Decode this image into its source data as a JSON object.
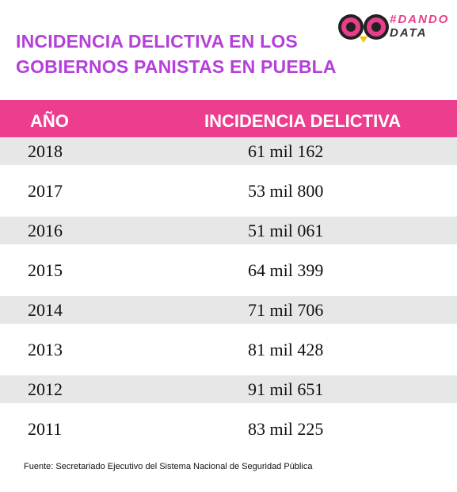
{
  "header": {
    "title_lines": [
      "INCIDENCIA DELICTIVA EN LOS",
      "GOBIERNOS PANISTAS EN PUEBLA"
    ],
    "logo_lines": [
      "#DANDO",
      "DATA"
    ]
  },
  "table": {
    "columns": [
      "AÑO",
      "INCIDENCIA DELICTIVA"
    ],
    "rows": [
      [
        "2018",
        "61 mil 162"
      ],
      [
        "2017",
        "53 mil 800"
      ],
      [
        "2016",
        "51 mil 061"
      ],
      [
        "2015",
        "64 mil 399"
      ],
      [
        "2014",
        "71 mil 706"
      ],
      [
        "2013",
        "81 mil 428"
      ],
      [
        "2012",
        "91 mil 651"
      ],
      [
        "2011",
        "83 mil 225"
      ]
    ]
  },
  "footer": {
    "source": "Fuente: Secretariado Ejecutivo del Sistema Nacional de Seguridad Pública"
  }
}
